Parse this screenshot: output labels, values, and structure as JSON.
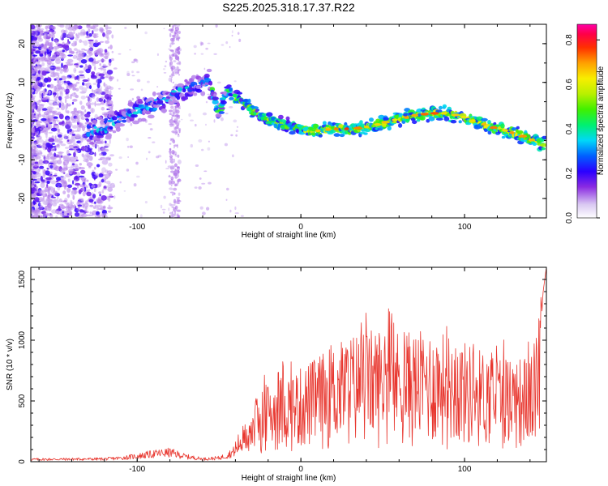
{
  "title": "S225.2025.318.17.37.R22",
  "chart_data": [
    {
      "type": "heatmap",
      "name": "spectrogram",
      "xlabel": "Height of straight line (km)",
      "ylabel": "Frequency (Hz)",
      "xlim": [
        -165,
        150
      ],
      "ylim": [
        -25,
        25
      ],
      "xticks": [
        -100,
        0,
        100
      ],
      "yticks": [
        -20,
        -10,
        0,
        10,
        20
      ],
      "colorbar": {
        "label": "Normalized spectral amplitude",
        "range": [
          0,
          0.87
        ],
        "ticks": [
          "0.0",
          "0.2",
          "0.4",
          "0.6",
          "0.8"
        ],
        "tick_values": [
          0,
          0.2,
          0.4,
          0.6,
          0.8
        ]
      },
      "ridge": {
        "x": [
          -130,
          -120,
          -110,
          -100,
          -90,
          -80,
          -70,
          -60,
          -57,
          -50,
          -45,
          -40,
          -30,
          -20,
          -10,
          0,
          10,
          20,
          30,
          40,
          50,
          60,
          70,
          80,
          90,
          100,
          110,
          120,
          130,
          140,
          148
        ],
        "y": [
          -3,
          -2,
          1,
          3,
          4,
          6,
          8,
          10,
          11,
          2,
          8,
          6,
          3,
          0,
          -1,
          -2,
          -2.5,
          -2,
          -2,
          -1.5,
          -0.5,
          0.5,
          1.5,
          2,
          2,
          1,
          -0.5,
          -2,
          -3,
          -4.5,
          -6
        ]
      }
    },
    {
      "type": "line",
      "name": "snr",
      "xlabel": "Height of straight line (km)",
      "ylabel": "SNR (10 * v/v)",
      "xlim": [
        -165,
        150
      ],
      "ylim": [
        0,
        1600
      ],
      "xticks": [
        -100,
        0,
        100
      ],
      "yticks": [
        0,
        500,
        1000,
        1500
      ],
      "color": "#e8372f",
      "envelope": {
        "x": [
          -165,
          -120,
          -110,
          -100,
          -90,
          -80,
          -70,
          -60,
          -50,
          -45,
          -40,
          -35,
          -30,
          -25,
          -20,
          -10,
          0,
          10,
          20,
          30,
          40,
          50,
          60,
          70,
          80,
          90,
          100,
          110,
          120,
          130,
          140,
          145,
          148,
          150
        ],
        "y": [
          25,
          30,
          40,
          60,
          85,
          100,
          55,
          30,
          40,
          70,
          120,
          200,
          300,
          380,
          420,
          470,
          500,
          560,
          620,
          680,
          700,
          720,
          700,
          690,
          700,
          680,
          640,
          600,
          590,
          560,
          560,
          700,
          1400,
          1600
        ]
      }
    }
  ]
}
